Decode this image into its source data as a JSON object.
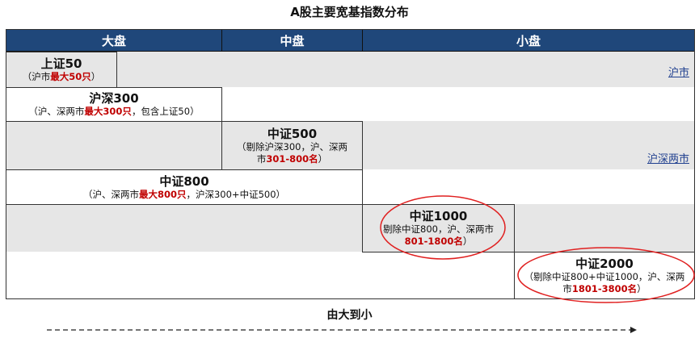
{
  "title": "A股主要宽基指数分布",
  "headers": [
    "大盘",
    "中盘",
    "小盘"
  ],
  "markets": {
    "sh": "沪市",
    "shsz": "沪深两市"
  },
  "indices": [
    {
      "name": "上证50",
      "pre": "（沪市",
      "red": "最大50只",
      "post": "）"
    },
    {
      "name": "沪深300",
      "pre": "（沪、深两市",
      "red": "最大300只",
      "post": "，包含上证50）"
    },
    {
      "name": "中证500",
      "pre": "（剔除沪深300，沪、深两市",
      "red": "301-800名",
      "post": "）"
    },
    {
      "name": "中证800",
      "pre": "（沪、深两市",
      "red": "最大800只",
      "post": "，沪深300+中证500）"
    },
    {
      "name": "中证1000",
      "pre": "剔除中证800，沪、深两市",
      "red": "801-1800名",
      "post": "）"
    },
    {
      "name": "中证2000",
      "pre": "（剔除中证800+中证1000，沪、深两市",
      "red": "1801-3800名",
      "post": "）"
    }
  ],
  "arrow_label": "由大到小",
  "colors": {
    "header": "#1f477a",
    "highlight": "#c00000",
    "ellipse": "#e02020"
  }
}
